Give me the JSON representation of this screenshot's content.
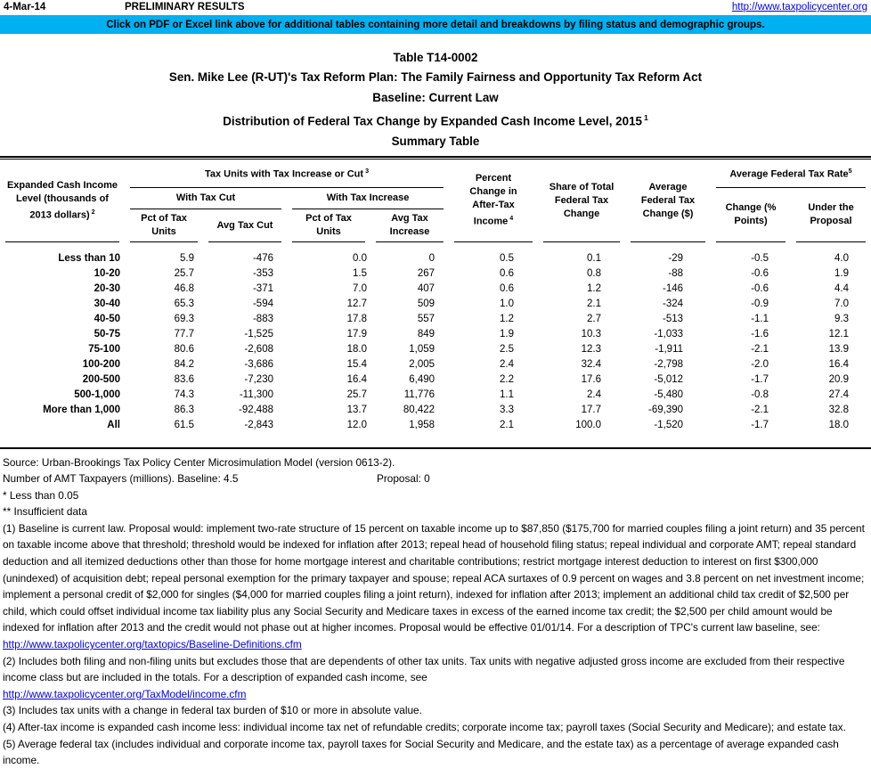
{
  "page": {
    "date": "4-Mar-14",
    "status": "PRELIMINARY RESULTS",
    "site_link": "http://www.taxpolicycenter.org",
    "banner": "Click on PDF or Excel link above for additional tables containing more detail and breakdowns by filing status and demographic groups."
  },
  "title": {
    "line1": "Table T14-0002",
    "line2": "Sen. Mike Lee (R-UT)'s Tax Reform Plan: The Family Fairness and Opportunity Tax Reform Act",
    "line3": "Baseline: Current Law",
    "line4": "Distribution of Federal Tax Change by Expanded Cash Income Level, 2015",
    "line4_sup": "1",
    "line5": "Summary Table"
  },
  "table": {
    "headers": {
      "income": {
        "label": "Expanded Cash Income Level (thousands of 2013 dollars)",
        "sup": "2"
      },
      "group_units": {
        "label": "Tax Units with Tax Increase or Cut",
        "sup": "3"
      },
      "with_cut": "With Tax Cut",
      "with_increase": "With Tax Increase",
      "pct_units_cut": "Pct of Tax Units",
      "avg_cut": "Avg Tax Cut",
      "pct_units_inc": "Pct of Tax Units",
      "avg_inc": "Avg Tax Increase",
      "pct_change": {
        "label": "Percent Change in After-Tax Income",
        "sup": "4"
      },
      "share": "Share of Total Federal Tax Change",
      "avg_change": "Average Federal Tax Change ($)",
      "aftr": {
        "label": "Average Federal Tax Rate",
        "sup": "5"
      },
      "aftr_change": "Change (% Points)",
      "aftr_proposal": "Under the Proposal"
    },
    "rows": [
      {
        "label": "Less than 10",
        "values": [
          "5.9",
          "-476",
          "0.0",
          "0",
          "0.5",
          "0.1",
          "-29",
          "-0.5",
          "4.0"
        ]
      },
      {
        "label": "10-20",
        "values": [
          "25.7",
          "-353",
          "1.5",
          "267",
          "0.6",
          "0.8",
          "-88",
          "-0.6",
          "1.9"
        ]
      },
      {
        "label": "20-30",
        "values": [
          "46.8",
          "-371",
          "7.0",
          "407",
          "0.6",
          "1.2",
          "-146",
          "-0.6",
          "4.4"
        ]
      },
      {
        "label": "30-40",
        "values": [
          "65.3",
          "-594",
          "12.7",
          "509",
          "1.0",
          "2.1",
          "-324",
          "-0.9",
          "7.0"
        ]
      },
      {
        "label": "40-50",
        "values": [
          "69.3",
          "-883",
          "17.8",
          "557",
          "1.2",
          "2.7",
          "-513",
          "-1.1",
          "9.3"
        ]
      },
      {
        "label": "50-75",
        "values": [
          "77.7",
          "-1,525",
          "17.9",
          "849",
          "1.9",
          "10.3",
          "-1,033",
          "-1.6",
          "12.1"
        ]
      },
      {
        "label": "75-100",
        "values": [
          "80.6",
          "-2,608",
          "18.0",
          "1,059",
          "2.5",
          "12.3",
          "-1,911",
          "-2.1",
          "13.9"
        ]
      },
      {
        "label": "100-200",
        "values": [
          "84.2",
          "-3,686",
          "15.4",
          "2,005",
          "2.4",
          "32.4",
          "-2,798",
          "-2.0",
          "16.4"
        ]
      },
      {
        "label": "200-500",
        "values": [
          "83.6",
          "-7,230",
          "16.4",
          "6,490",
          "2.2",
          "17.6",
          "-5,012",
          "-1.7",
          "20.9"
        ]
      },
      {
        "label": "500-1,000",
        "values": [
          "74.3",
          "-11,300",
          "25.7",
          "11,776",
          "1.1",
          "2.4",
          "-5,480",
          "-0.8",
          "27.4"
        ]
      },
      {
        "label": "More than 1,000",
        "values": [
          "86.3",
          "-92,488",
          "13.7",
          "80,422",
          "3.3",
          "17.7",
          "-69,390",
          "-2.1",
          "32.8"
        ]
      },
      {
        "label": "All",
        "values": [
          "61.5",
          "-2,843",
          "12.0",
          "1,958",
          "2.1",
          "100.0",
          "-1,520",
          "-1.7",
          "18.0"
        ]
      }
    ]
  },
  "notes": {
    "source": "Source: Urban-Brookings Tax Policy Center Microsimulation Model (version 0613-2).",
    "amt_label": "Number of AMT Taxpayers (millions).  Baseline: 4.5",
    "amt_proposal": "Proposal: 0",
    "star1": "* Less than 0.05",
    "star2": "** Insufficient data",
    "fn1": "(1) Baseline is current law. Proposal would: implement two-rate structure of 15 percent on taxable income up to $87,850 ($175,700 for married couples filing a joint return) and 35 percent on taxable income above that threshold; threshold would be indexed for inflation after 2013; repeal head of household filing status; repeal individual and corporate AMT; repeal standard deduction and all itemized deductions other than those for home mortgage interest and charitable contributions; restrict mortgage interest deduction to interest on first $300,000 (unindexed) of acquisition debt; repeal personal exemption for the primary taxpayer and spouse; repeal ACA surtaxes of 0.9 percent on wages and 3.8 percent on net investment income; implement a personal credit of $2,000 for singles ($4,000 for married couples filing a joint return), indexed for inflation after 2013; implement an additional child tax credit of $2,500 per child, which could offset individual income tax liability plus any Social Security and Medicare taxes in excess of the earned income tax credit; the $2,500 per child amount would be indexed for inflation after 2013 and the credit would not phase out at higher incomes. Proposal would be effective 01/01/14.  For a description of TPC's current law baseline, see:",
    "fn1_link": "http://www.taxpolicycenter.org/taxtopics/Baseline-Definitions.cfm",
    "fn2": "(2) Includes both filing and non-filing units but excludes those that are dependents of other tax units. Tax units with negative adjusted gross income are excluded from their respective income class but are included in the totals. For a description of expanded cash income, see",
    "fn2_link": "http://www.taxpolicycenter.org/TaxModel/income.cfm",
    "fn3": "(3) Includes tax units with a change in federal tax burden of $10 or more in absolute value.",
    "fn4": "(4) After-tax income is expanded cash income less: individual income tax net of refundable credits; corporate income tax; payroll taxes (Social Security and Medicare); and estate tax.",
    "fn5": "(5) Average federal tax (includes individual and corporate income tax, payroll taxes for Social Security and Medicare, and the estate tax) as a percentage of average expanded cash income."
  }
}
